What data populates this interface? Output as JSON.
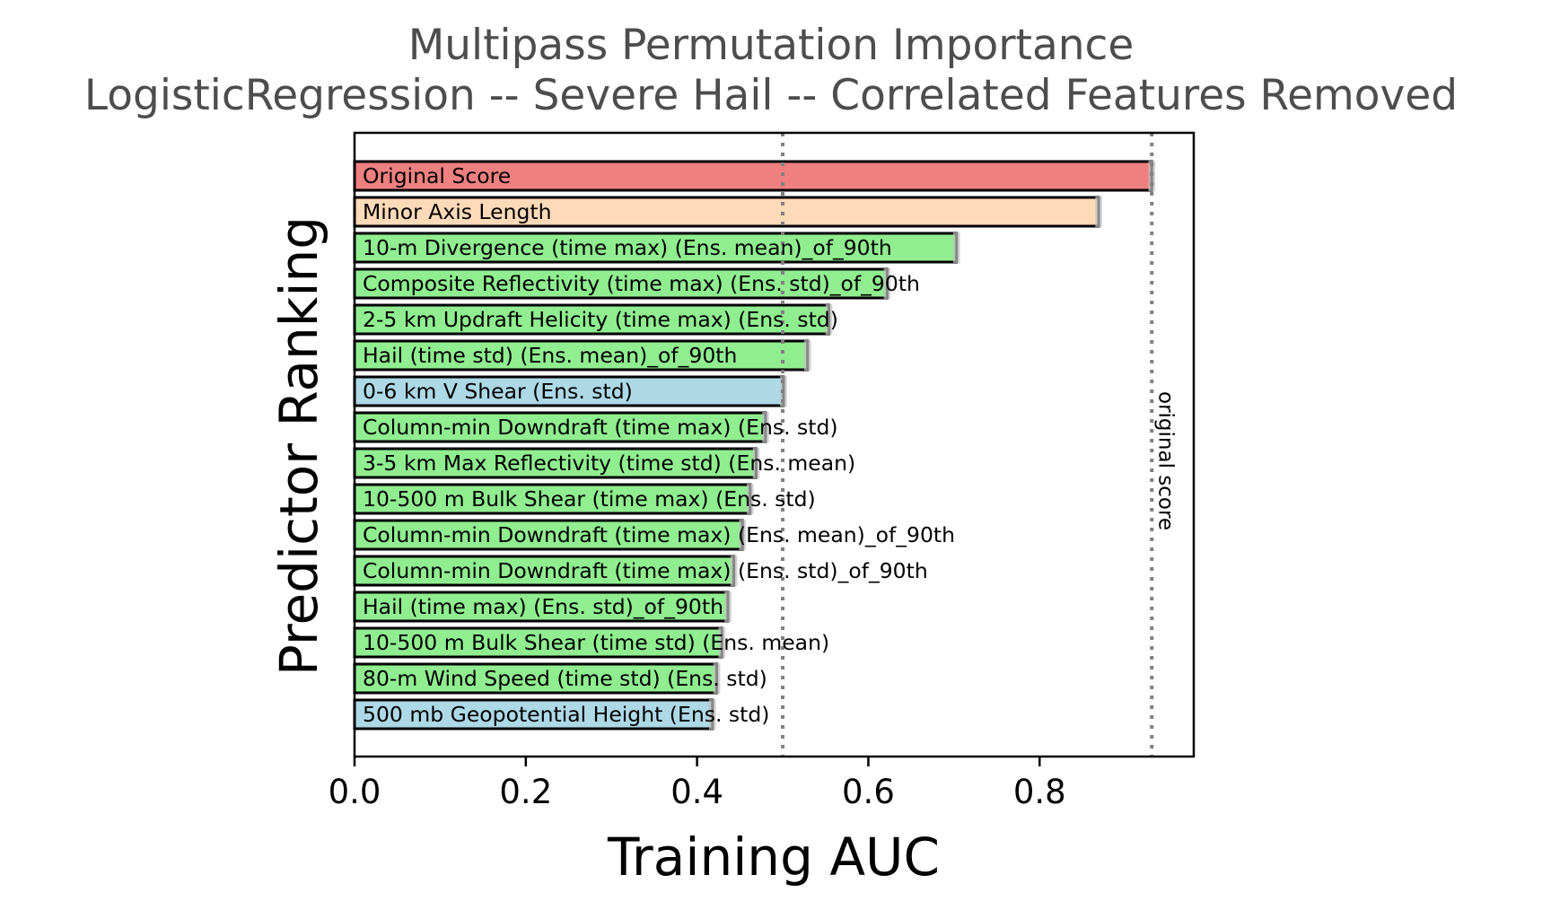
{
  "chart_data": {
    "type": "bar",
    "orientation": "horizontal",
    "title": "Multipass Permutation Importance",
    "subtitle": "LogisticRegression -- Severe Hail -- Correlated Features Removed",
    "xlabel": "Training AUC",
    "ylabel": "Predictor Ranking",
    "xlim": [
      0.0,
      0.98
    ],
    "xticks": [
      "0.0",
      "0.2",
      "0.4",
      "0.6",
      "0.8"
    ],
    "grid": false,
    "reference_lines": [
      {
        "x": 0.5,
        "style": "dotted",
        "label": ""
      },
      {
        "x": 0.931,
        "style": "dotted",
        "label": "original score"
      }
    ],
    "categories": [
      "Original Score",
      "Minor Axis Length",
      "10-m Divergence (time max) (Ens. mean)_of_90th",
      "Composite Reflectivity (time max) (Ens. std)_of_90th",
      "2-5 km Updraft Helicity (time max) (Ens. std)",
      "Hail (time std) (Ens. mean)_of_90th",
      "0-6 km V Shear (Ens. std)",
      "Column-min Downdraft (time max) (Ens. std)",
      "3-5 km Max Reflectivity (time std) (Ens. mean)",
      "10-500 m Bulk Shear (time max) (Ens. std)",
      "Column-min Downdraft (time max) (Ens. mean)_of_90th",
      "Column-min Downdraft (time max) (Ens. std)_of_90th",
      "Hail (time max) (Ens. std)_of_90th",
      "10-500 m Bulk Shear (time std) (Ens. mean)",
      "80-m Wind Speed (time std) (Ens. std)",
      "500 mb Geopotential Height (Ens. std)"
    ],
    "values": [
      0.931,
      0.869,
      0.703,
      0.622,
      0.554,
      0.529,
      0.501,
      0.48,
      0.469,
      0.462,
      0.453,
      0.443,
      0.436,
      0.429,
      0.423,
      0.418
    ],
    "errors": [
      0.004,
      0.004,
      0.004,
      0.004,
      0.004,
      0.004,
      0.004,
      0.004,
      0.004,
      0.004,
      0.004,
      0.004,
      0.004,
      0.004,
      0.004,
      0.004
    ],
    "bar_colors": [
      "#f08080",
      "#ffdab9",
      "#90ee90",
      "#90ee90",
      "#90ee90",
      "#90ee90",
      "#add8e6",
      "#90ee90",
      "#90ee90",
      "#90ee90",
      "#90ee90",
      "#90ee90",
      "#90ee90",
      "#90ee90",
      "#90ee90",
      "#add8e6"
    ],
    "colors": {
      "bar_edge": "#000000",
      "error_bar": "#c0c0c0",
      "reference_line": "#808080",
      "title": "#4d4d4d"
    }
  }
}
